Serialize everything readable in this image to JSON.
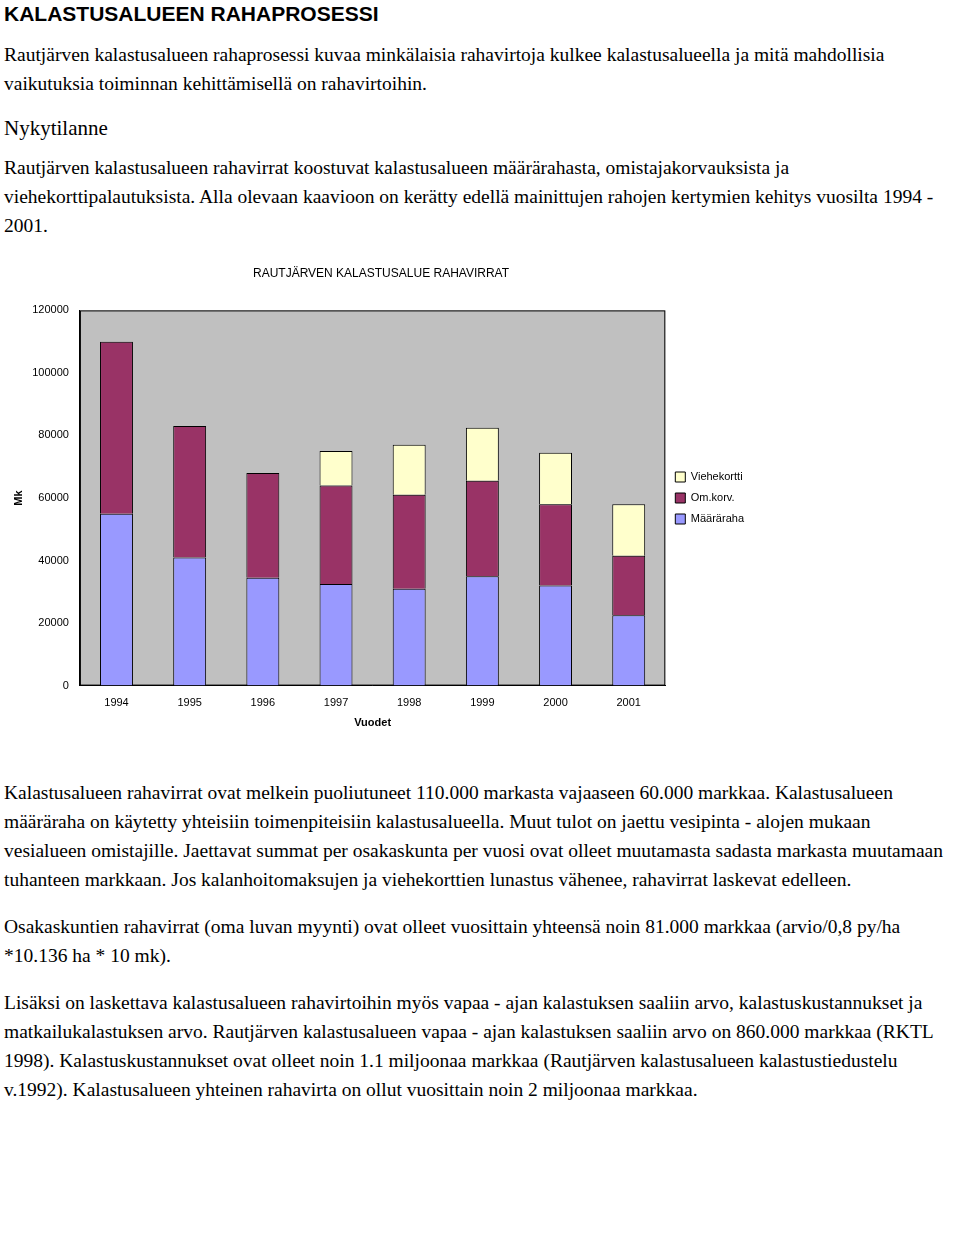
{
  "heading": "KALASTUSALUEEN RAHAPROSESSI",
  "intro": "Rautjärven kalastusalueen rahaprosessi kuvaa minkälaisia rahavirtoja kulkee kalastusalueella ja mitä mahdollisia vaikutuksia toiminnan kehittämisellä on rahavirtoihin.",
  "subheading": "Nykytilanne",
  "paragraphs_before": [
    "Rautjärven kalastusalueen rahavirrat koostuvat kalastusalueen määrärahasta, omistajakorvauksista ja viehekorttipalautuksista. Alla olevaan kaavioon on kerätty edellä mainittujen rahojen kertymien kehitys vuosilta 1994 - 2001."
  ],
  "chart_data": {
    "type": "bar",
    "title": "RAUTJÄRVEN KALASTUSALUE RAHAVIRRAT",
    "x_label": "Vuodet",
    "y_label": "Mk",
    "categories": [
      "1994",
      "1995",
      "1996",
      "1997",
      "1998",
      "1999",
      "2000",
      "2001"
    ],
    "series": [
      {
        "name": "Määräraha",
        "color": "#9999ff",
        "values": [
          55000,
          41000,
          34500,
          32500,
          31000,
          35000,
          32000,
          22500
        ]
      },
      {
        "name": "Om.korv.",
        "color": "#993366",
        "values": [
          55000,
          42000,
          33500,
          31500,
          30000,
          30500,
          26000,
          19000
        ]
      },
      {
        "name": "Viehekortti",
        "color": "#ffffcc",
        "values": [
          null,
          null,
          null,
          11000,
          16000,
          17000,
          16500,
          16500
        ]
      }
    ],
    "stacked": true,
    "ylim": [
      0,
      120000
    ],
    "yticks": [
      0,
      20000,
      40000,
      60000,
      80000,
      100000,
      120000
    ],
    "grid": false,
    "legend": "right"
  },
  "paragraphs_after": [
    "Kalastusalueen rahavirrat ovat melkein puoliutuneet 110.000 markasta vajaaseen 60.000 markkaa. Kalastusalueen määräraha on käytetty yhteisiin toimenpiteisiin kalastusalueella. Muut tulot on jaettu vesipinta - alojen mukaan vesialueen omistajille. Jaettavat summat per osakaskunta per vuosi ovat olleet muutamasta sadasta markasta muutamaan tuhanteen markkaan. Jos kalanhoitomaksujen ja viehekorttien lunastus vähenee, rahavirrat laskevat edelleen.",
    "Osakaskuntien rahavirrat (oma luvan myynti) ovat olleet vuosittain yhteensä noin 81.000 markkaa (arvio/0,8 py/ha *10.136 ha * 10 mk).",
    "Lisäksi on laskettava kalastusalueen rahavirtoihin myös vapaa - ajan kalastuksen saaliin arvo, kalastuskustannukset ja matkailukalastuksen arvo. Rautjärven kalastusalueen vapaa - ajan kalastuksen saaliin arvo on 860.000 markkaa (RKTL 1998). Kalastuskustannukset ovat olleet noin 1.1 miljoonaa markkaa (Rautjärven kalastusalueen kalastustiedustelu v.1992). Kalastusalueen yhteinen rahavirta on ollut vuosittain noin 2 miljoonaa markkaa."
  ]
}
